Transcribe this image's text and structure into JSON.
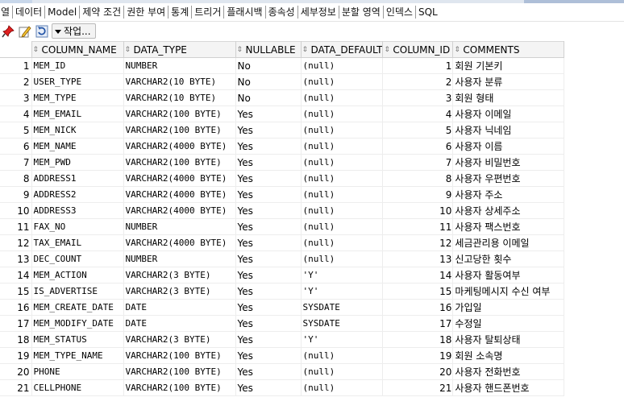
{
  "tabs": [
    "열",
    "데이터",
    "Model",
    "제약 조건",
    "권한 부여",
    "통계",
    "트리거",
    "플래시백",
    "종속성",
    "세부정보",
    "분할 영역",
    "인덱스",
    "SQL"
  ],
  "toolbar": {
    "icons": [
      "pin-icon",
      "edit-icon",
      "refresh-icon"
    ],
    "actions_label": "작업..."
  },
  "columns": [
    "COLUMN_NAME",
    "DATA_TYPE",
    "NULLABLE",
    "DATA_DEFAULT",
    "COLUMN_ID",
    "COMMENTS"
  ],
  "rows": [
    [
      "1",
      "MEM_ID",
      "NUMBER",
      "No",
      "(null)",
      "1",
      "회원 기본키"
    ],
    [
      "2",
      "USER_TYPE",
      "VARCHAR2(10 BYTE)",
      "No",
      "(null)",
      "2",
      "사용자 분류"
    ],
    [
      "3",
      "MEM_TYPE",
      "VARCHAR2(10 BYTE)",
      "No",
      "(null)",
      "3",
      "회원 형태"
    ],
    [
      "4",
      "MEM_EMAIL",
      "VARCHAR2(100 BYTE)",
      "Yes",
      "(null)",
      "4",
      "사용자 이메일"
    ],
    [
      "5",
      "MEM_NICK",
      "VARCHAR2(100 BYTE)",
      "Yes",
      "(null)",
      "5",
      "사용자 닉네임"
    ],
    [
      "6",
      "MEM_NAME",
      "VARCHAR2(4000 BYTE)",
      "Yes",
      "(null)",
      "6",
      "사용자 이름"
    ],
    [
      "7",
      "MEM_PWD",
      "VARCHAR2(100 BYTE)",
      "Yes",
      "(null)",
      "7",
      "사용자 비밀번호"
    ],
    [
      "8",
      "ADDRESS1",
      "VARCHAR2(4000 BYTE)",
      "Yes",
      "(null)",
      "8",
      "사용자 우편번호"
    ],
    [
      "9",
      "ADDRESS2",
      "VARCHAR2(4000 BYTE)",
      "Yes",
      "(null)",
      "9",
      "사용자 주소"
    ],
    [
      "10",
      "ADDRESS3",
      "VARCHAR2(4000 BYTE)",
      "Yes",
      "(null)",
      "10",
      "사용자 상세주소"
    ],
    [
      "11",
      "FAX_NO",
      "NUMBER",
      "Yes",
      "(null)",
      "11",
      "사용자 팩스번호"
    ],
    [
      "12",
      "TAX_EMAIL",
      "VARCHAR2(4000 BYTE)",
      "Yes",
      "(null)",
      "12",
      "세금관리용 이메일"
    ],
    [
      "13",
      "DEC_COUNT",
      "NUMBER",
      "Yes",
      "(null)",
      "13",
      "신고당한 횟수"
    ],
    [
      "14",
      "MEM_ACTION",
      "VARCHAR2(3 BYTE)",
      "Yes",
      "'Y'",
      "14",
      "사용자 활동여부"
    ],
    [
      "15",
      "IS_ADVERTISE",
      "VARCHAR2(3 BYTE)",
      "Yes",
      "'Y'",
      "15",
      "마케팅메시지 수신 여부"
    ],
    [
      "16",
      "MEM_CREATE_DATE",
      "DATE",
      "Yes",
      "SYSDATE",
      "16",
      "가입일"
    ],
    [
      "17",
      "MEM_MODIFY_DATE",
      "DATE",
      "Yes",
      "SYSDATE",
      "17",
      "수정일"
    ],
    [
      "18",
      "MEM_STATUS",
      "VARCHAR2(3 BYTE)",
      "Yes",
      "'Y'",
      "18",
      "사용자 탈퇴상태"
    ],
    [
      "19",
      "MEM_TYPE_NAME",
      "VARCHAR2(100 BYTE)",
      "Yes",
      "(null)",
      "19",
      "회원 소속명"
    ],
    [
      "20",
      "PHONE",
      "VARCHAR2(100 BYTE)",
      "Yes",
      "(null)",
      "20",
      "사용자 전화번호"
    ],
    [
      "21",
      "CELLPHONE",
      "VARCHAR2(100 BYTE)",
      "Yes",
      "(null)",
      "21",
      "사용자 핸드폰번호"
    ]
  ]
}
